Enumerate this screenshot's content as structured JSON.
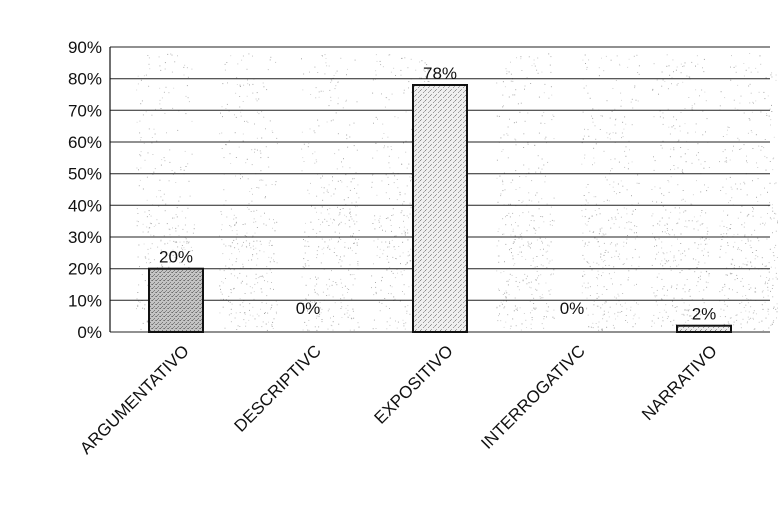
{
  "chart_data": {
    "type": "bar",
    "categories": [
      "ARGUMENTATIVO",
      "DESCRIPTIVO",
      "EXPOSITIVO",
      "INTERROGATIVO",
      "NARRATIVO"
    ],
    "tick_categories": [
      "ARGUMENTATIVO",
      "DESCRIPTIVC",
      "EXPOSITIVO",
      "INTERROGATIVC",
      "NARRATIVO"
    ],
    "values": [
      20,
      0,
      78,
      0,
      2
    ],
    "data_labels": [
      "20%",
      "0%",
      "78%",
      "0%",
      "2%"
    ],
    "yticks": [
      "0%",
      "10%",
      "20%",
      "30%",
      "40%",
      "50%",
      "60%",
      "70%",
      "80%",
      "90%"
    ],
    "ylim": [
      0,
      90
    ],
    "grid": true,
    "title": "",
    "xlabel": "",
    "ylabel": "",
    "colors": {
      "bar_dark": "#a8a8a8",
      "bar_light": "#dcdcdc",
      "bar_stroke": "#111111",
      "grid": "#222222",
      "speckle": "#9a9a9a"
    }
  }
}
